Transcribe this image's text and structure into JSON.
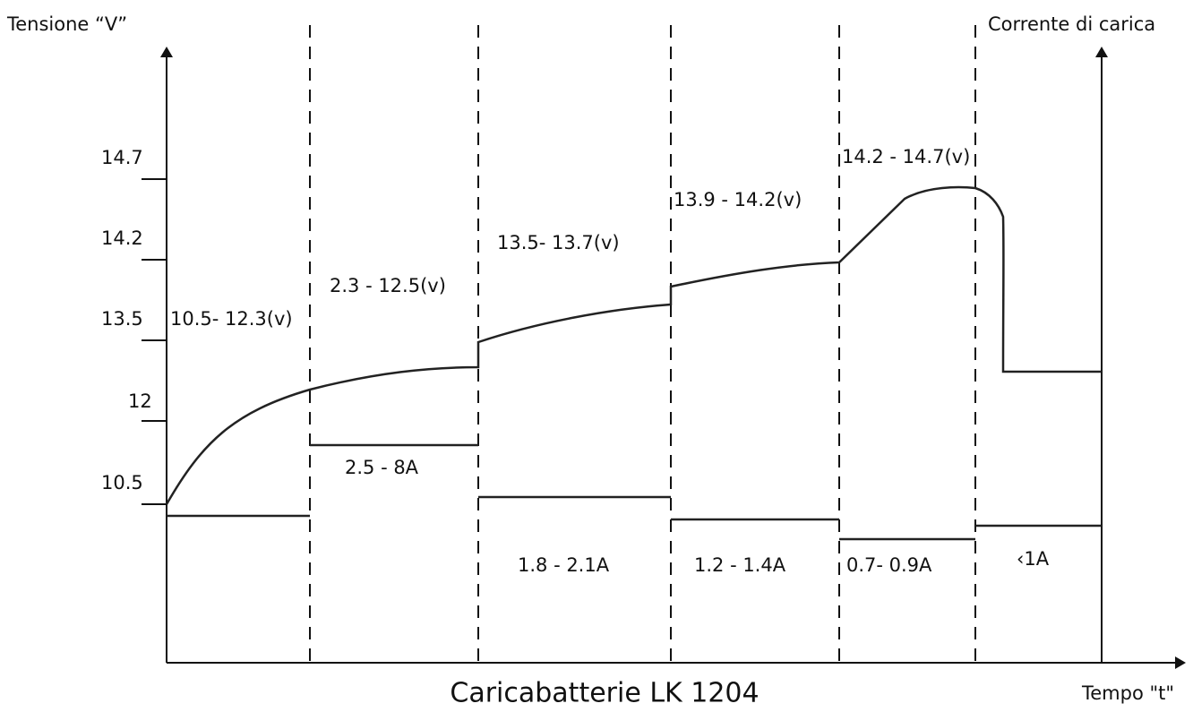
{
  "title": "Caricabatterie LK 1204",
  "axes": {
    "left": "Tensione “V”",
    "right": "Corrente di carica",
    "bottom": "Tempo \"t\""
  },
  "voltage_ticks": [
    "14.7",
    "14.2",
    "13.5",
    "12",
    "10.5"
  ],
  "voltage_labels": [
    "10.5- 12.3(v)",
    "2.3 - 12.5(v)",
    "13.5- 13.7(v)",
    "13.9 - 14.2(v)",
    "14.2 - 14.7(v)"
  ],
  "current_labels": [
    "2.5 - 8A",
    "1.8 - 2.1A",
    "1.2 - 1.4A",
    "0.7- 0.9A",
    "‹1A"
  ]
}
